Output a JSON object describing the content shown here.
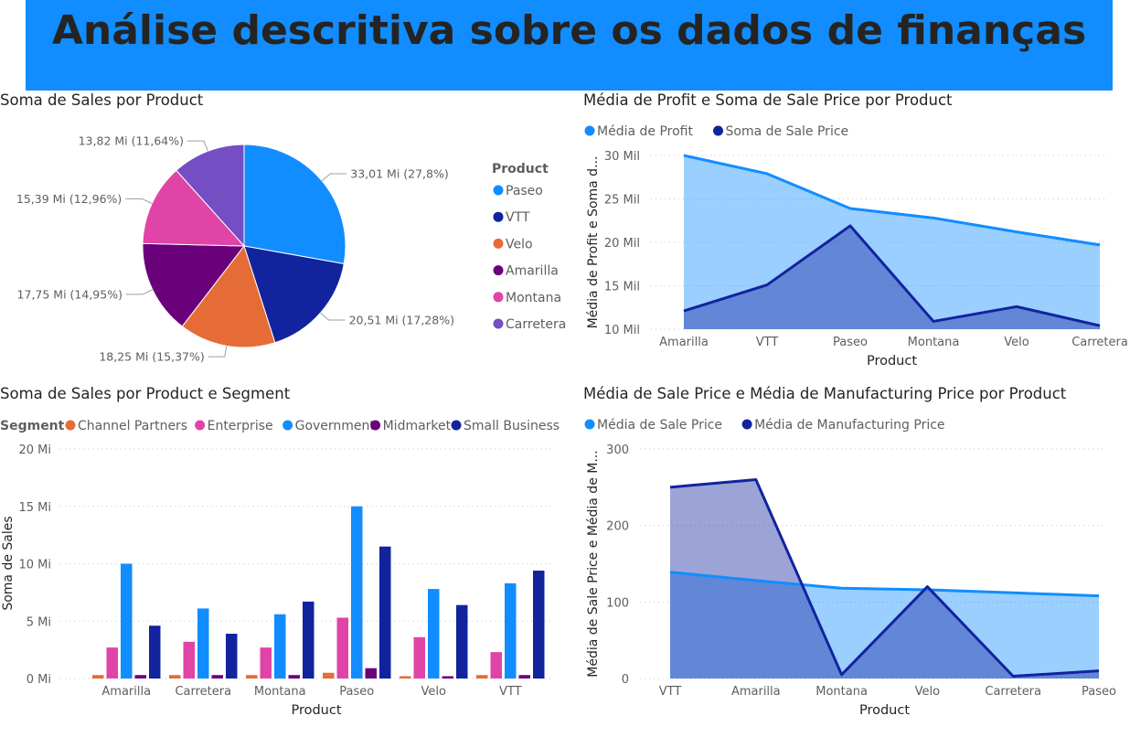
{
  "banner": {
    "title": "Análise descritiva sobre os dados de finanças",
    "color": "#118dff"
  },
  "colors": {
    "light_blue": "#118dff",
    "dark_blue": "#12239e",
    "orange": "#e66c37",
    "purple": "#6b007b",
    "pink": "#e044a7",
    "violet": "#744ec2",
    "text": "#252423",
    "axis_text": "#605e5c"
  },
  "chart_data": [
    {
      "id": "pie",
      "type": "pie",
      "title": "Soma de Sales por Product",
      "legend_title": "Product",
      "legend_position": "right",
      "slices": [
        {
          "name": "Paseo",
          "value": 33.01,
          "label": "33,01 Mi (27,8%)",
          "color": "#118dff"
        },
        {
          "name": "VTT",
          "value": 20.51,
          "label": "20,51 Mi (17,28%)",
          "color": "#12239e"
        },
        {
          "name": "Velo",
          "value": 18.25,
          "label": "18,25 Mi (15,37%)",
          "color": "#e66c37"
        },
        {
          "name": "Amarilla",
          "value": 17.75,
          "label": "17,75 Mi (14,95%)",
          "color": "#6b007b"
        },
        {
          "name": "Montana",
          "value": 15.39,
          "label": "15,39 Mi (12,96%)",
          "color": "#e044a7"
        },
        {
          "name": "Carretera",
          "value": 13.82,
          "label": "13,82 Mi (11,64%)",
          "color": "#744ec2"
        }
      ]
    },
    {
      "id": "area1",
      "type": "area",
      "title": "Média de Profit e Soma de Sale Price por Product",
      "xlabel": "Product",
      "ylabel": "Média de Profit e Soma d...",
      "legend_position": "top-left",
      "categories": [
        "Amarilla",
        "VTT",
        "Paseo",
        "Montana",
        "Velo",
        "Carretera"
      ],
      "ylim": [
        10000,
        30000
      ],
      "yticks": [
        10000,
        15000,
        20000,
        25000,
        30000
      ],
      "ytick_labels": [
        "10 Mil",
        "15 Mil",
        "20 Mil",
        "25 Mil",
        "30 Mil"
      ],
      "series": [
        {
          "name": "Média de Profit",
          "values": [
            30000,
            27900,
            23900,
            22800,
            21200,
            19700
          ],
          "color": "#118dff"
        },
        {
          "name": "Soma de Sale Price",
          "values": [
            12100,
            15100,
            21900,
            10900,
            12600,
            10400
          ],
          "color": "#12239e"
        }
      ]
    },
    {
      "id": "bar",
      "type": "bar",
      "title": "Soma de Sales por Product e Segment",
      "legend_title": "Segment",
      "legend_position": "top-left",
      "xlabel": "Product",
      "ylabel": "Soma de Sales",
      "categories": [
        "Amarilla",
        "Carretera",
        "Montana",
        "Paseo",
        "Velo",
        "VTT"
      ],
      "ylim": [
        0,
        20
      ],
      "yticks": [
        0,
        5,
        10,
        15,
        20
      ],
      "ytick_labels": [
        "0 Mi",
        "5 Mi",
        "10 Mi",
        "15 Mi",
        "20 Mi"
      ],
      "series": [
        {
          "name": "Channel Partners",
          "values": [
            0.3,
            0.3,
            0.3,
            0.5,
            0.2,
            0.3
          ],
          "color": "#e66c37"
        },
        {
          "name": "Enterprise",
          "values": [
            2.7,
            3.2,
            2.7,
            5.3,
            3.6,
            2.3
          ],
          "color": "#e044a7"
        },
        {
          "name": "Government",
          "values": [
            10.0,
            6.1,
            5.6,
            15.0,
            7.8,
            8.3
          ],
          "color": "#118dff"
        },
        {
          "name": "Midmarket",
          "values": [
            0.3,
            0.3,
            0.3,
            0.9,
            0.2,
            0.3
          ],
          "color": "#6b007b"
        },
        {
          "name": "Small Business",
          "values": [
            4.6,
            3.9,
            6.7,
            11.5,
            6.4,
            9.4
          ],
          "color": "#12239e"
        }
      ]
    },
    {
      "id": "area2",
      "type": "area",
      "title": "Média de Sale Price e Média de Manufacturing Price por Product",
      "xlabel": "Product",
      "ylabel": "Média de Sale Price e Média de M...",
      "legend_position": "top-left",
      "categories": [
        "VTT",
        "Amarilla",
        "Montana",
        "Velo",
        "Carretera",
        "Paseo"
      ],
      "ylim": [
        0,
        300
      ],
      "yticks": [
        0,
        100,
        200,
        300
      ],
      "ytick_labels": [
        "0",
        "100",
        "200",
        "300"
      ],
      "series": [
        {
          "name": "Média de Sale Price",
          "values": [
            139,
            128,
            118,
            116,
            112,
            108
          ],
          "color": "#118dff"
        },
        {
          "name": "Média de Manufacturing Price",
          "values": [
            250,
            260,
            5,
            120,
            3,
            10
          ],
          "color": "#12239e"
        }
      ]
    }
  ]
}
